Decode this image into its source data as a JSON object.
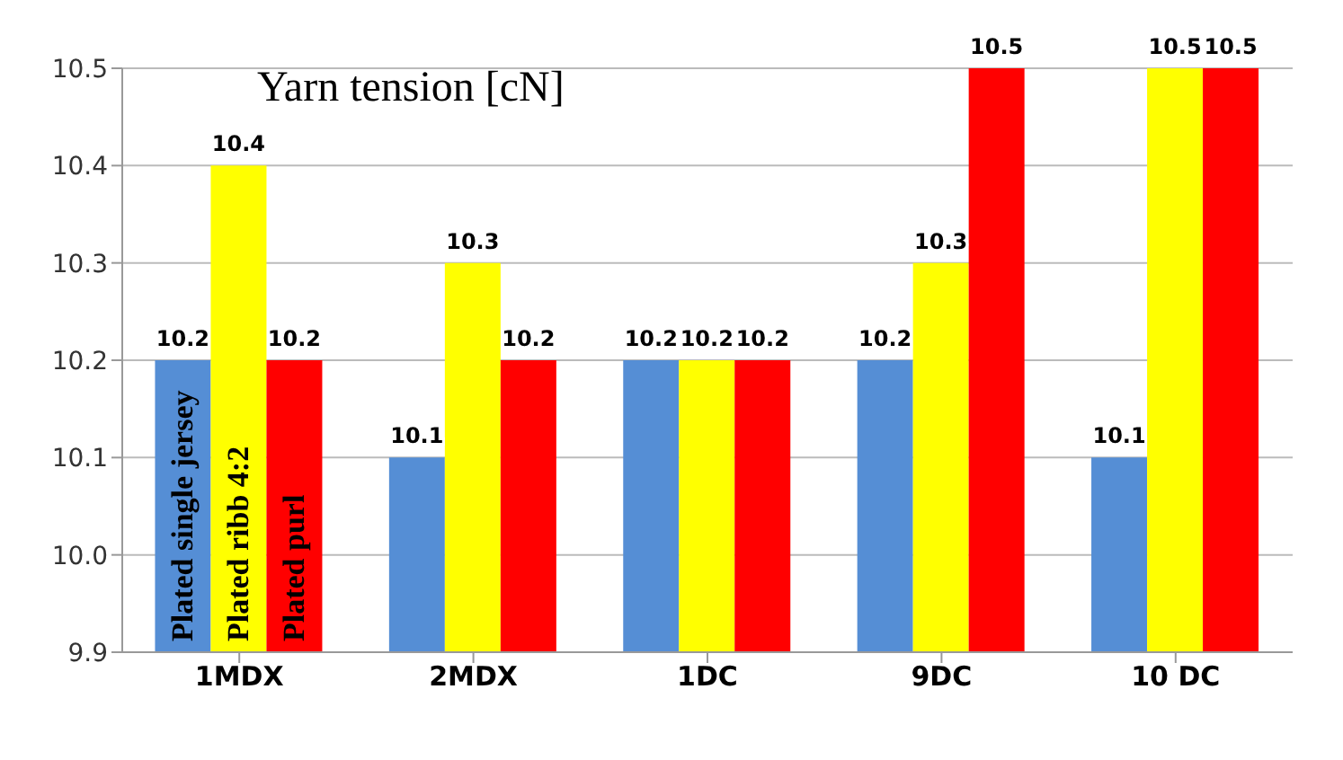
{
  "chart_data": {
    "type": "bar",
    "title": "Yarn tension [cN]",
    "categories": [
      "1MDX",
      "2MDX",
      "1DC",
      "9DC",
      "10 DC"
    ],
    "series": [
      {
        "name": "Plated single jersey",
        "color": "#558ed5",
        "values": [
          10.2,
          10.1,
          10.2,
          10.2,
          10.1
        ]
      },
      {
        "name": "Plated ribb 4:2",
        "color": "#ffff00",
        "values": [
          10.4,
          10.3,
          10.2,
          10.3,
          10.5
        ]
      },
      {
        "name": "Plated purl",
        "color": "#ff0000",
        "values": [
          10.2,
          10.2,
          10.2,
          10.5,
          10.5
        ]
      }
    ],
    "ylim": [
      9.9,
      10.5
    ],
    "yticks": [
      9.9,
      {
        "value": 10,
        "label": "10.0"
      },
      10.1,
      10.2,
      10.3,
      10.4,
      10.5
    ],
    "grid": "y",
    "data_labels": true
  }
}
